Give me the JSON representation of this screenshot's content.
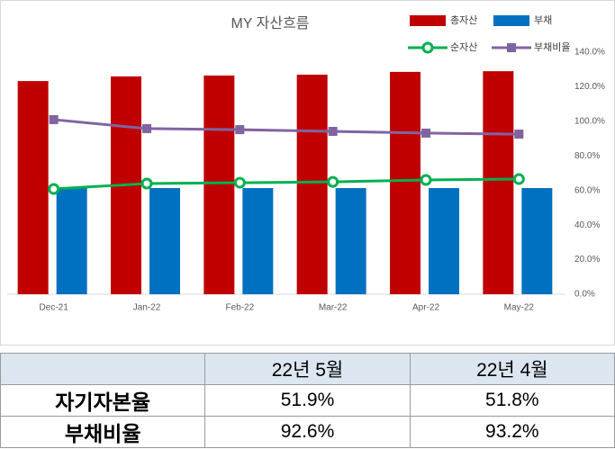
{
  "chart_data": {
    "type": "combo",
    "title": "MY 자산흐름",
    "categories": [
      "Dec-21",
      "Jan-22",
      "Feb-22",
      "Mar-22",
      "Apr-22",
      "May-22"
    ],
    "series": [
      {
        "name": "총자산",
        "type": "bar",
        "color": "#c00000",
        "values": [
          123.3,
          126,
          126.5,
          127,
          128.6,
          129
        ]
      },
      {
        "name": "부채",
        "type": "bar",
        "color": "#0070c0",
        "values": [
          61.4,
          61.4,
          61.4,
          61.4,
          61.4,
          61.4
        ]
      },
      {
        "name": "순자산",
        "type": "line",
        "color": "#00b050",
        "values": [
          60.9,
          64,
          64.5,
          65,
          66.1,
          66.6
        ]
      },
      {
        "name": "부채비율",
        "type": "line",
        "axis": "y2",
        "color": "#8064a2",
        "values": [
          101,
          95.8,
          95.2,
          94.2,
          93.2,
          92.6
        ]
      }
    ],
    "ylim": [
      0,
      140
    ],
    "y2lim": [
      0,
      140
    ],
    "y2ticks": [
      {
        "value": 0,
        "label": "0.0%"
      },
      {
        "value": 20,
        "label": "20.0%"
      },
      {
        "value": 40,
        "label": "40.0%"
      },
      {
        "value": 60,
        "label": "60.0%"
      },
      {
        "value": 80,
        "label": "80.0%"
      },
      {
        "value": 100,
        "label": "100.0%"
      },
      {
        "value": 120,
        "label": "120.0%"
      },
      {
        "value": 140,
        "label": "140.0%"
      }
    ]
  },
  "table": {
    "columns": [
      "22년 5월",
      "22년 4월"
    ],
    "rows": [
      {
        "label": "자기자본율",
        "values": [
          "51.9%",
          "51.8%"
        ]
      },
      {
        "label": "부채비율",
        "values": [
          "92.6%",
          "93.2%"
        ]
      }
    ]
  }
}
